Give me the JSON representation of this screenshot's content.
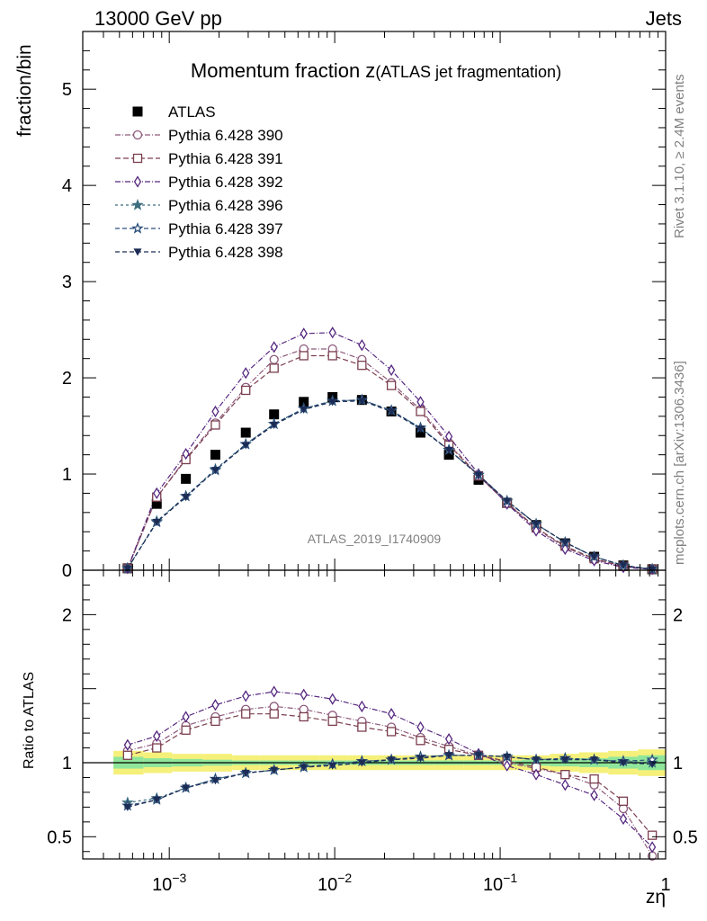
{
  "header": {
    "left": "13000 GeV pp",
    "right": "Jets"
  },
  "side_labels": {
    "rivet": "Rivet 3.1.10, ≥ 2.4M events",
    "mcplots": "mcplots.cern.ch [arXiv:1306.3436]"
  },
  "watermark": "ATLAS_2019_I1740909",
  "chart_data": [
    {
      "type": "scatter",
      "panel": "main",
      "title_main": "Momentum fraction z",
      "title_sub": "(ATLAS jet fragmentation)",
      "xlabel": "zη",
      "ylabel": "fraction/bin",
      "xscale": "log",
      "xlim": [
        0.0003,
        1.0
      ],
      "ylim": [
        0,
        5.6
      ],
      "yticks": [
        0,
        1,
        2,
        3,
        4,
        5
      ],
      "ytick_labels": [
        "0",
        "1",
        "2",
        "3",
        "4",
        "5"
      ],
      "xtick_labels": [
        {
          "value": 0.001,
          "base": "10",
          "exp": "−3"
        },
        {
          "value": 0.01,
          "base": "10",
          "exp": "−2"
        },
        {
          "value": 0.1,
          "base": "10",
          "exp": "−1"
        },
        {
          "value": 1,
          "base": "1",
          "exp": ""
        }
      ],
      "legend_position": "top-left",
      "x": [
        0.00056,
        0.00084,
        0.00126,
        0.0019,
        0.0029,
        0.0043,
        0.0065,
        0.0097,
        0.0146,
        0.022,
        0.033,
        0.049,
        0.074,
        0.11,
        0.165,
        0.247,
        0.37,
        0.555,
        0.83
      ],
      "series": [
        {
          "name": "ATLAS",
          "marker": "filled-square",
          "color": "#000000",
          "dash": "",
          "values": [
            0.02,
            0.69,
            0.95,
            1.2,
            1.43,
            1.62,
            1.75,
            1.8,
            1.77,
            1.65,
            1.43,
            1.2,
            0.94,
            0.7,
            0.47,
            0.28,
            0.14,
            0.05,
            0.01
          ]
        },
        {
          "name": "Pythia 6.428 390",
          "marker": "open-circle",
          "color": "#8d5a7b",
          "dash": "6,2,1,2",
          "values": [
            0.02,
            0.76,
            1.16,
            1.53,
            1.9,
            2.19,
            2.3,
            2.3,
            2.19,
            1.95,
            1.67,
            1.32,
            0.98,
            0.7,
            0.43,
            0.24,
            0.11,
            0.04,
            0.01
          ]
        },
        {
          "name": "Pythia 6.428 391",
          "marker": "open-square",
          "color": "#7a3e4e",
          "dash": "6,3",
          "values": [
            0.02,
            0.76,
            1.15,
            1.51,
            1.87,
            2.1,
            2.23,
            2.23,
            2.13,
            1.92,
            1.65,
            1.3,
            0.98,
            0.7,
            0.44,
            0.25,
            0.12,
            0.04,
            0.01
          ]
        },
        {
          "name": "Pythia 6.428 392",
          "marker": "open-diamond",
          "color": "#55277f",
          "dash": "6,2,1,2",
          "values": [
            0.02,
            0.8,
            1.21,
            1.65,
            2.05,
            2.32,
            2.46,
            2.47,
            2.34,
            2.08,
            1.75,
            1.39,
            1.0,
            0.69,
            0.41,
            0.22,
            0.1,
            0.03,
            0.01
          ]
        },
        {
          "name": "Pythia 6.428 396",
          "marker": "filled-star",
          "color": "#3d6e7f",
          "dash": "3,3",
          "values": [
            0.02,
            0.51,
            0.77,
            1.05,
            1.31,
            1.52,
            1.68,
            1.76,
            1.77,
            1.66,
            1.48,
            1.25,
            0.99,
            0.72,
            0.48,
            0.29,
            0.14,
            0.05,
            0.01
          ]
        },
        {
          "name": "Pythia 6.428 397",
          "marker": "open-star",
          "color": "#2a4e7a",
          "dash": "5,3",
          "values": [
            0.02,
            0.5,
            0.77,
            1.04,
            1.31,
            1.52,
            1.68,
            1.76,
            1.77,
            1.66,
            1.48,
            1.25,
            0.99,
            0.72,
            0.48,
            0.29,
            0.14,
            0.05,
            0.01
          ]
        },
        {
          "name": "Pythia 6.428 398",
          "marker": "filled-triangle-down",
          "color": "#1c2c55",
          "dash": "5,3",
          "values": [
            0.02,
            0.5,
            0.76,
            1.04,
            1.3,
            1.51,
            1.67,
            1.75,
            1.76,
            1.65,
            1.47,
            1.25,
            0.99,
            0.72,
            0.48,
            0.29,
            0.14,
            0.05,
            0.01
          ]
        }
      ]
    },
    {
      "type": "scatter",
      "panel": "ratio",
      "ylabel": "Ratio to ATLAS",
      "xscale": "log",
      "xlim": [
        0.0003,
        1.0
      ],
      "ylim": [
        0.35,
        2.3
      ],
      "yticks": [
        0.5,
        1,
        2
      ],
      "ytick_labels": [
        "0.5",
        "1",
        "2"
      ],
      "reference_line": 1.0,
      "uncertainty_band": {
        "x": [
          0.00046,
          0.0007,
          0.00104,
          0.0016,
          0.0024,
          0.0035,
          0.0053,
          0.008,
          0.012,
          0.018,
          0.027,
          0.04,
          0.06,
          0.09,
          0.135,
          0.2,
          0.3,
          0.45,
          0.68,
          1.0
        ],
        "outer": [
          0.08,
          0.07,
          0.06,
          0.06,
          0.05,
          0.05,
          0.05,
          0.05,
          0.05,
          0.05,
          0.05,
          0.05,
          0.05,
          0.05,
          0.05,
          0.06,
          0.07,
          0.08,
          0.09
        ],
        "inner": [
          0.04,
          0.03,
          0.025,
          0.02,
          0.015,
          0.015,
          0.015,
          0.015,
          0.015,
          0.015,
          0.015,
          0.015,
          0.015,
          0.015,
          0.02,
          0.025,
          0.03,
          0.04,
          0.05
        ],
        "outer_color": "#f5f07a",
        "inner_color": "#8fe69a"
      },
      "x": [
        0.00056,
        0.00084,
        0.00126,
        0.0019,
        0.0029,
        0.0043,
        0.0065,
        0.0097,
        0.0146,
        0.022,
        0.033,
        0.049,
        0.074,
        0.11,
        0.165,
        0.247,
        0.37,
        0.555,
        0.83
      ],
      "series": [
        {
          "name": "Pythia 6.428 390",
          "marker": "open-circle",
          "color": "#8d5a7b",
          "dash": "6,2,1,2",
          "values": [
            1.08,
            1.13,
            1.25,
            1.31,
            1.36,
            1.38,
            1.36,
            1.32,
            1.28,
            1.24,
            1.17,
            1.11,
            1.05,
            1.0,
            0.96,
            0.92,
            0.85,
            0.69,
            0.37
          ]
        },
        {
          "name": "Pythia 6.428 391",
          "marker": "open-square",
          "color": "#7a3e4e",
          "dash": "6,3",
          "values": [
            1.05,
            1.1,
            1.22,
            1.28,
            1.33,
            1.33,
            1.31,
            1.28,
            1.24,
            1.21,
            1.15,
            1.09,
            1.05,
            1.01,
            0.97,
            0.92,
            0.89,
            0.74,
            0.51
          ]
        },
        {
          "name": "Pythia 6.428 392",
          "marker": "open-diamond",
          "color": "#55277f",
          "dash": "6,2,1,2",
          "values": [
            1.12,
            1.18,
            1.31,
            1.39,
            1.45,
            1.48,
            1.46,
            1.43,
            1.38,
            1.33,
            1.24,
            1.16,
            1.06,
            0.98,
            0.92,
            0.85,
            0.78,
            0.62,
            0.43
          ]
        },
        {
          "name": "Pythia 6.428 396",
          "marker": "filled-star",
          "color": "#3d6e7f",
          "dash": "3,3",
          "values": [
            0.73,
            0.76,
            0.83,
            0.89,
            0.93,
            0.95,
            0.97,
            0.99,
            1.01,
            1.02,
            1.04,
            1.05,
            1.05,
            1.04,
            1.02,
            1.03,
            1.02,
            1.01,
            1.0
          ]
        },
        {
          "name": "Pythia 6.428 397",
          "marker": "open-star",
          "color": "#2a4e7a",
          "dash": "5,3",
          "values": [
            0.71,
            0.75,
            0.83,
            0.89,
            0.93,
            0.95,
            0.97,
            0.99,
            1.01,
            1.02,
            1.04,
            1.05,
            1.05,
            1.04,
            1.02,
            1.03,
            1.02,
            1.01,
            1.02
          ]
        },
        {
          "name": "Pythia 6.428 398",
          "marker": "filled-triangle-down",
          "color": "#1c2c55",
          "dash": "5,3",
          "values": [
            0.7,
            0.75,
            0.83,
            0.88,
            0.93,
            0.95,
            0.97,
            0.98,
            1.0,
            1.02,
            1.03,
            1.05,
            1.05,
            1.04,
            1.02,
            1.02,
            1.02,
            1.0,
            0.99
          ]
        }
      ]
    }
  ]
}
